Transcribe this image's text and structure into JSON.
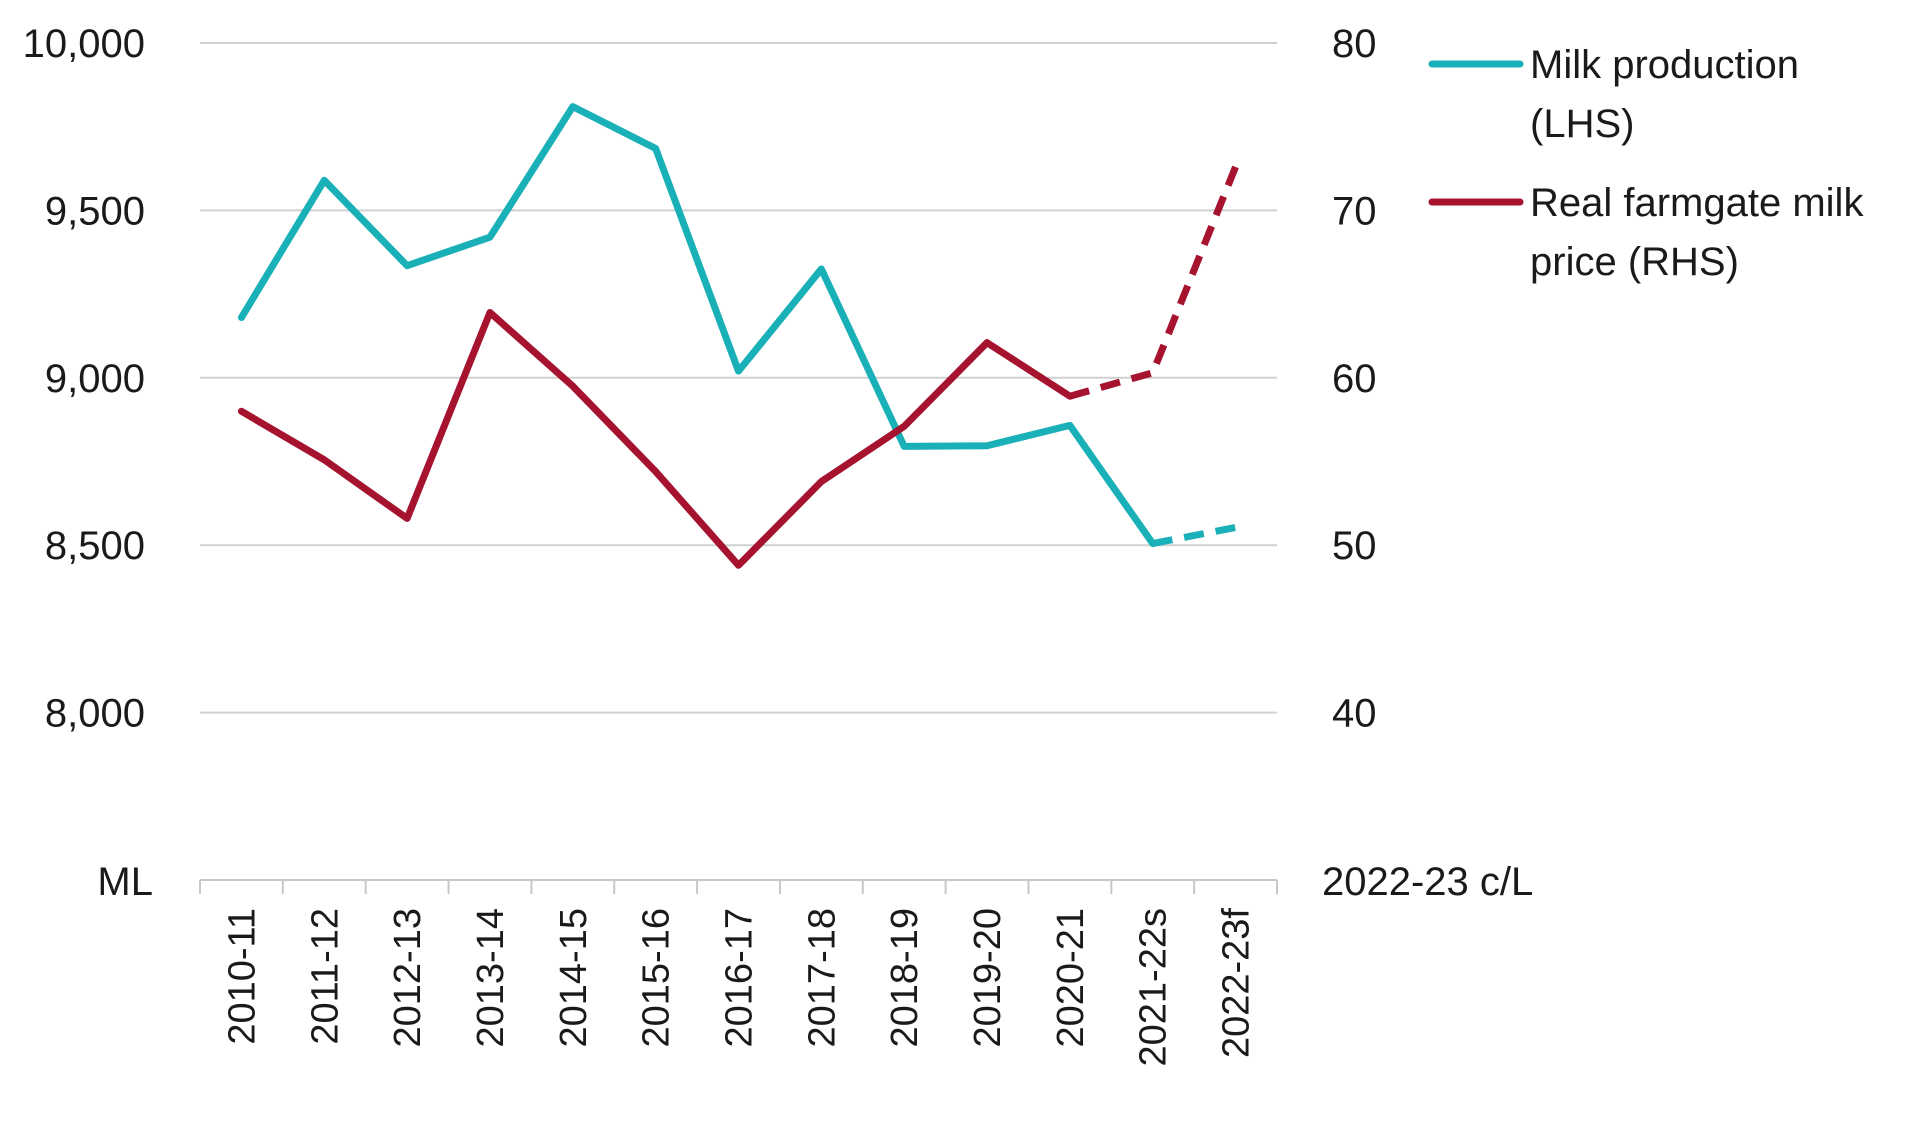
{
  "chart_data": {
    "type": "line",
    "categories": [
      "2010-11",
      "2011-12",
      "2012-13",
      "2013-14",
      "2014-15",
      "2015-16",
      "2016-17",
      "2017-18",
      "2018-19",
      "2019-20",
      "2020-21",
      "2021-22s",
      "2022-23f"
    ],
    "series": [
      {
        "name": "Milk production (LHS)",
        "axis": "left",
        "color": "#1ab0b8",
        "values": [
          9180,
          9590,
          9335,
          9420,
          9810,
          9685,
          9020,
          9325,
          8795,
          8797,
          8858,
          8505,
          8553
        ],
        "dashed_from_index": 11
      },
      {
        "name": "Real farmgate milk price (RHS)",
        "axis": "right",
        "color": "#a6132f",
        "values": [
          58.0,
          55.1,
          51.6,
          63.9,
          59.5,
          54.4,
          48.8,
          53.8,
          57.1,
          62.1,
          58.9,
          60.3,
          72.6
        ],
        "dashed_from_index": 10
      }
    ],
    "y_left": {
      "min": 7500,
      "max": 10000,
      "ticks": [
        8000,
        8500,
        9000,
        9500,
        10000
      ],
      "tick_labels": [
        "8,000",
        "8,500",
        "9,000",
        "9,500",
        "10,000"
      ],
      "unit_label": "ML"
    },
    "y_right": {
      "min": 30,
      "max": 80,
      "ticks": [
        40,
        50,
        60,
        70,
        80
      ],
      "tick_labels": [
        "40",
        "50",
        "60",
        "70",
        "80"
      ],
      "unit_label": "2022-23 c/L"
    },
    "legend": {
      "placement": "top-right",
      "entries": [
        {
          "lines": [
            "Milk production",
            "(LHS)"
          ],
          "color": "#1ab0b8"
        },
        {
          "lines": [
            "Real farmgate milk",
            "price (RHS)"
          ],
          "color": "#a6132f"
        }
      ]
    },
    "grid": true,
    "grid_color": "#d0d0d0",
    "title": "",
    "xlabel": ""
  }
}
